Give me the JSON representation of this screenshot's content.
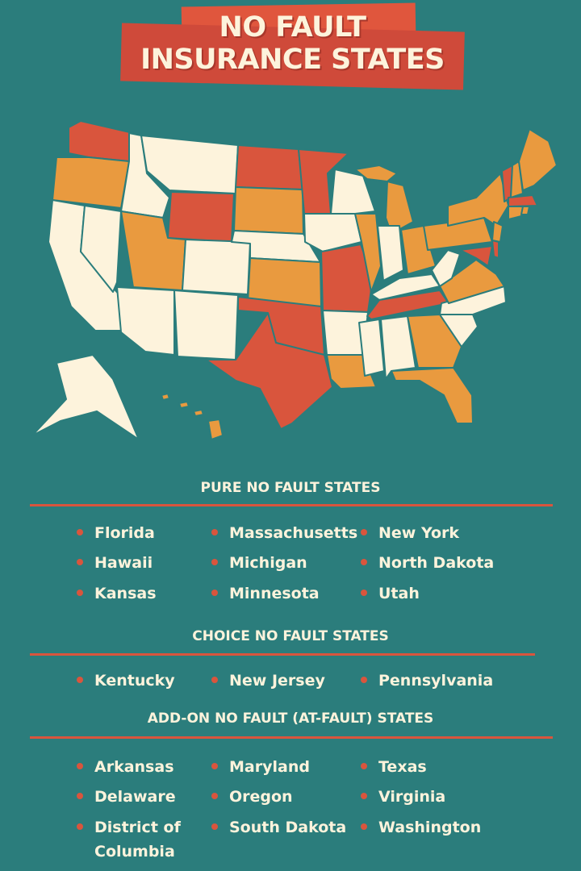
{
  "title": {
    "line1": "NO FAULT",
    "line2": "INSURANCE STATES"
  },
  "colors": {
    "background": "#2b7d7c",
    "pure_no_fault": "#d9553d",
    "choice_or_addon": "#e99a3f",
    "at_fault": "#fdf3dc",
    "banner": "#cf4a3a"
  },
  "sections": {
    "pure": {
      "heading": "PURE NO FAULT STATES",
      "items": [
        "Florida",
        "Massachusetts",
        "New York",
        "Hawaii",
        "Michigan",
        "North Dakota",
        "Kansas",
        "Minnesota",
        "Utah"
      ]
    },
    "choice": {
      "heading": "CHOICE NO FAULT STATES",
      "items": [
        "Kentucky",
        "New Jersey",
        "Pennsylvania"
      ]
    },
    "addon": {
      "heading": "ADD-ON NO FAULT (AT-FAULT) STATES",
      "items": [
        "Arkansas",
        "Maryland",
        "Texas",
        "Delaware",
        "Oregon",
        "Virginia",
        "District of Columbia",
        "South Dakota",
        "Washington"
      ]
    }
  }
}
